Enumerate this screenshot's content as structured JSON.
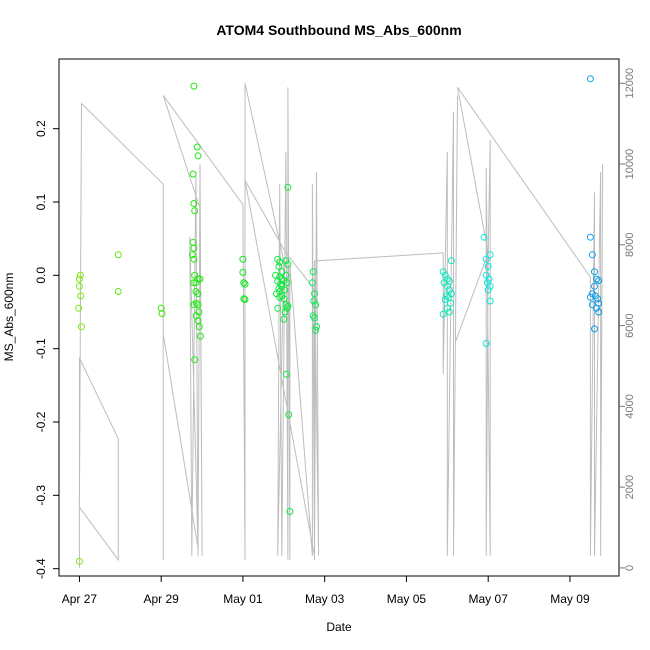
{
  "chart_data": {
    "type": "scatter",
    "title": "ATOM4 Southbound MS_Abs_600nm",
    "xlabel": "Date",
    "ylabel": "MS_Abs_600nm",
    "x_ticks": [
      "Apr 27",
      "Apr 29",
      "May 01",
      "May 03",
      "May 05",
      "May 07",
      "May 09"
    ],
    "y_ticks": [
      "-0.4",
      "-0.3",
      "-0.2",
      "-0.1",
      "0.0",
      "0.1",
      "0.2"
    ],
    "y2_ticks": [
      "0",
      "2000",
      "4000",
      "6000",
      "8000",
      "10000",
      "12000"
    ],
    "xlim": [
      -0.5,
      13.2
    ],
    "ylim": [
      -0.41,
      0.295
    ],
    "y2lim": [
      -200,
      12600
    ],
    "grid": false,
    "points": [
      [
        0.0,
        -0.005
      ],
      [
        0.02,
        0.0
      ],
      [
        0.0,
        -0.015
      ],
      [
        0.03,
        -0.028
      ],
      [
        -0.02,
        -0.045
      ],
      [
        0.05,
        -0.07
      ],
      [
        0.0,
        -0.39
      ],
      [
        0.95,
        0.028
      ],
      [
        0.95,
        -0.022
      ],
      [
        2.0,
        -0.045
      ],
      [
        2.02,
        -0.052
      ],
      [
        2.8,
        0.258
      ],
      [
        2.88,
        0.175
      ],
      [
        2.9,
        0.163
      ],
      [
        2.78,
        0.138
      ],
      [
        2.8,
        0.098
      ],
      [
        2.82,
        0.088
      ],
      [
        2.78,
        0.045
      ],
      [
        2.8,
        0.037
      ],
      [
        2.76,
        0.028
      ],
      [
        2.8,
        0.022
      ],
      [
        2.82,
        0.0
      ],
      [
        2.9,
        -0.005
      ],
      [
        2.95,
        -0.005
      ],
      [
        2.85,
        -0.01
      ],
      [
        2.8,
        -0.01
      ],
      [
        2.85,
        -0.022
      ],
      [
        2.9,
        -0.025
      ],
      [
        2.86,
        -0.038
      ],
      [
        2.9,
        -0.04
      ],
      [
        2.8,
        -0.04
      ],
      [
        2.92,
        -0.05
      ],
      [
        2.86,
        -0.055
      ],
      [
        2.9,
        -0.062
      ],
      [
        2.93,
        -0.07
      ],
      [
        2.96,
        -0.083
      ],
      [
        2.82,
        -0.115
      ],
      [
        4.0,
        0.022
      ],
      [
        4.0,
        0.004
      ],
      [
        4.02,
        -0.01
      ],
      [
        4.05,
        -0.012
      ],
      [
        4.02,
        -0.032
      ],
      [
        4.05,
        -0.033
      ],
      [
        4.85,
        0.022
      ],
      [
        4.9,
        0.018
      ],
      [
        4.88,
        0.012
      ],
      [
        4.95,
        0.005
      ],
      [
        4.8,
        0.0
      ],
      [
        4.9,
        -0.002
      ],
      [
        4.95,
        -0.005
      ],
      [
        5.0,
        -0.007
      ],
      [
        4.85,
        -0.008
      ],
      [
        4.92,
        -0.012
      ],
      [
        4.95,
        -0.015
      ],
      [
        4.88,
        -0.018
      ],
      [
        4.9,
        -0.022
      ],
      [
        4.82,
        -0.025
      ],
      [
        4.95,
        -0.028
      ],
      [
        4.9,
        -0.03
      ],
      [
        4.85,
        -0.045
      ],
      [
        5.1,
        0.12
      ],
      [
        5.05,
        0.02
      ],
      [
        5.1,
        0.015
      ],
      [
        5.05,
        0.0
      ],
      [
        5.08,
        -0.01
      ],
      [
        5.02,
        -0.02
      ],
      [
        5.0,
        -0.032
      ],
      [
        5.05,
        -0.04
      ],
      [
        5.08,
        -0.045
      ],
      [
        5.03,
        -0.05
      ],
      [
        5.0,
        -0.06
      ],
      [
        5.1,
        -0.042
      ],
      [
        5.06,
        -0.135
      ],
      [
        5.12,
        -0.19
      ],
      [
        5.15,
        -0.322
      ],
      [
        5.72,
        0.005
      ],
      [
        5.7,
        -0.01
      ],
      [
        5.75,
        -0.025
      ],
      [
        5.73,
        -0.035
      ],
      [
        5.78,
        -0.04
      ],
      [
        5.72,
        -0.055
      ],
      [
        5.75,
        -0.058
      ],
      [
        5.8,
        -0.07
      ],
      [
        5.78,
        -0.075
      ],
      [
        8.9,
        0.005
      ],
      [
        8.95,
        0.0
      ],
      [
        9.0,
        -0.005
      ],
      [
        9.05,
        -0.008
      ],
      [
        9.1,
        0.02
      ],
      [
        8.92,
        -0.01
      ],
      [
        9.0,
        -0.015
      ],
      [
        9.05,
        -0.02
      ],
      [
        9.1,
        -0.025
      ],
      [
        8.98,
        -0.028
      ],
      [
        9.03,
        -0.03
      ],
      [
        8.95,
        -0.033
      ],
      [
        9.08,
        -0.038
      ],
      [
        9.0,
        -0.045
      ],
      [
        9.05,
        -0.05
      ],
      [
        8.9,
        -0.053
      ],
      [
        9.9,
        0.052
      ],
      [
        10.05,
        0.028
      ],
      [
        9.95,
        0.022
      ],
      [
        10.0,
        0.012
      ],
      [
        9.95,
        0.0
      ],
      [
        10.02,
        -0.005
      ],
      [
        9.98,
        -0.01
      ],
      [
        10.05,
        -0.015
      ],
      [
        10.0,
        -0.02
      ],
      [
        10.05,
        -0.035
      ],
      [
        9.95,
        -0.093
      ],
      [
        12.5,
        0.268
      ],
      [
        12.5,
        0.052
      ],
      [
        12.55,
        0.028
      ],
      [
        12.6,
        0.005
      ],
      [
        12.65,
        -0.005
      ],
      [
        12.7,
        -0.007
      ],
      [
        12.6,
        -0.015
      ],
      [
        12.55,
        -0.025
      ],
      [
        12.62,
        -0.028
      ],
      [
        12.5,
        -0.03
      ],
      [
        12.68,
        -0.032
      ],
      [
        12.7,
        -0.038
      ],
      [
        12.55,
        -0.04
      ],
      [
        12.65,
        -0.045
      ],
      [
        12.7,
        -0.05
      ],
      [
        12.6,
        -0.073
      ]
    ],
    "line_y2": [
      [
        0,
        0
      ],
      [
        0,
        5200
      ],
      [
        0.95,
        3200
      ],
      [
        0.95,
        200
      ],
      [
        0.95,
        200
      ],
      [
        0.0,
        1500
      ],
      [
        0.05,
        11500
      ],
      [
        2.05,
        9500
      ],
      [
        2.05,
        200
      ],
      [
        2.05,
        200
      ],
      [
        2.05,
        5800
      ],
      [
        2.9,
        500
      ],
      [
        2.7,
        8200
      ],
      [
        2.75,
        300
      ],
      [
        2.85,
        9700
      ],
      [
        2.9,
        300
      ],
      [
        2.95,
        10000
      ],
      [
        3.0,
        300
      ],
      [
        2.95,
        8900
      ],
      [
        2.05,
        11700
      ],
      [
        4.0,
        9000
      ],
      [
        4.05,
        200
      ],
      [
        4.05,
        12000
      ],
      [
        5.0,
        7600
      ],
      [
        4.85,
        300
      ],
      [
        4.9,
        9500
      ],
      [
        4.95,
        300
      ],
      [
        5.05,
        10300
      ],
      [
        5.1,
        200
      ],
      [
        5.1,
        11900
      ],
      [
        5.15,
        200
      ],
      [
        5.15,
        7500
      ],
      [
        5.7,
        300
      ],
      [
        5.7,
        9500
      ],
      [
        5.75,
        200
      ],
      [
        5.75,
        6900
      ],
      [
        5.05,
        7800
      ],
      [
        4.05,
        9600
      ],
      [
        5.75,
        300
      ],
      [
        5.8,
        9800
      ],
      [
        5.85,
        300
      ],
      [
        5.75,
        7600
      ],
      [
        8.9,
        7800
      ],
      [
        8.9,
        4800
      ],
      [
        9.0,
        10300
      ],
      [
        9.0,
        300
      ],
      [
        9.15,
        11300
      ],
      [
        9.15,
        300
      ],
      [
        9.25,
        11700
      ],
      [
        9.2,
        5600
      ],
      [
        10.0,
        7800
      ],
      [
        9.95,
        300
      ],
      [
        9.95,
        9900
      ],
      [
        10.05,
        300
      ],
      [
        10.05,
        10600
      ],
      [
        10.0,
        7800
      ],
      [
        9.25,
        11900
      ],
      [
        12.5,
        7200
      ],
      [
        12.5,
        300
      ],
      [
        12.6,
        9300
      ],
      [
        12.6,
        300
      ],
      [
        12.75,
        9800
      ],
      [
        12.75,
        300
      ],
      [
        12.8,
        10000
      ]
    ]
  }
}
